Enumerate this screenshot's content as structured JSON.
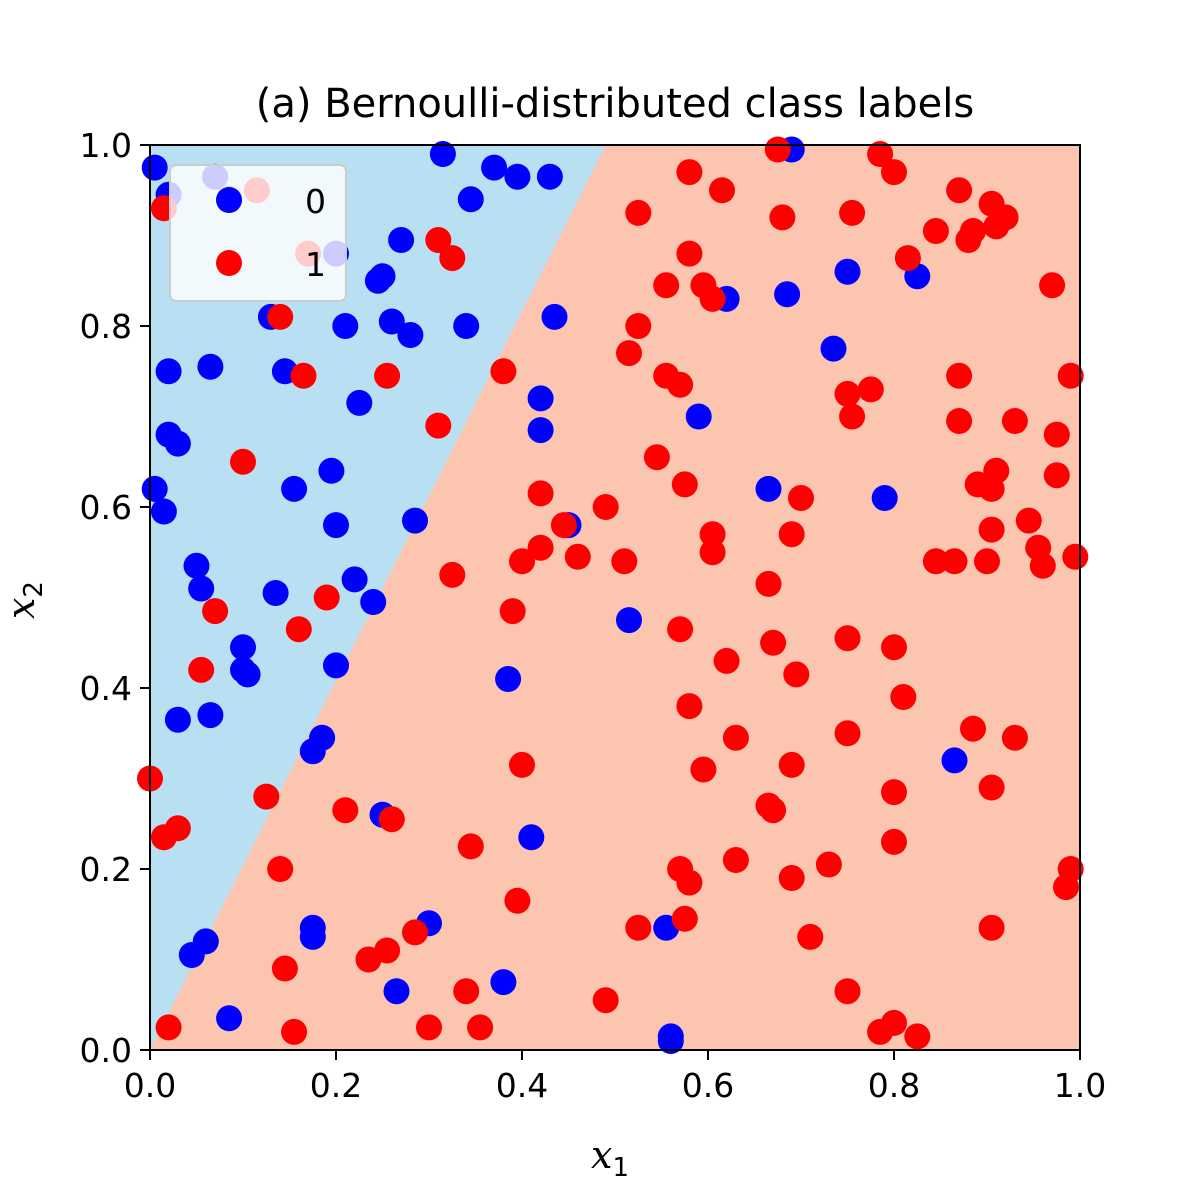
{
  "chart_data": {
    "type": "scatter",
    "title": "(a) Bernoulli-distributed class labels",
    "xlabel": "x",
    "xlabel_sub": "1",
    "ylabel": "x",
    "ylabel_sub": "2",
    "xlim": [
      0.0,
      1.0
    ],
    "ylim": [
      0.0,
      1.0
    ],
    "xticks": [
      "0.0",
      "0.2",
      "0.4",
      "0.6",
      "0.8",
      "1.0"
    ],
    "yticks": [
      "0.0",
      "0.2",
      "0.4",
      "0.6",
      "0.8",
      "1.0"
    ],
    "grid": false,
    "legend_position": "top-left",
    "decision_regions": {
      "boundary_points": [
        [
          0.0,
          0.0
        ],
        [
          0.49,
          1.0
        ]
      ],
      "region_0": {
        "label": "0",
        "color": "#b9e0f2",
        "side": "upper-left"
      },
      "region_1": {
        "label": "1",
        "color": "#fcc5b0",
        "side": "lower-right"
      }
    },
    "series": [
      {
        "name": "0",
        "color": "#0000ff",
        "points": [
          [
            0.005,
            0.975
          ],
          [
            0.02,
            0.945
          ],
          [
            0.07,
            0.965
          ],
          [
            0.085,
            0.94
          ],
          [
            0.315,
            0.99
          ],
          [
            0.37,
            0.975
          ],
          [
            0.395,
            0.965
          ],
          [
            0.43,
            0.965
          ],
          [
            0.345,
            0.94
          ],
          [
            0.69,
            0.995
          ],
          [
            0.2,
            0.88
          ],
          [
            0.27,
            0.895
          ],
          [
            0.25,
            0.855
          ],
          [
            0.245,
            0.85
          ],
          [
            0.13,
            0.81
          ],
          [
            0.26,
            0.805
          ],
          [
            0.21,
            0.8
          ],
          [
            0.28,
            0.79
          ],
          [
            0.34,
            0.8
          ],
          [
            0.435,
            0.81
          ],
          [
            0.62,
            0.83
          ],
          [
            0.685,
            0.835
          ],
          [
            0.75,
            0.86
          ],
          [
            0.825,
            0.855
          ],
          [
            0.735,
            0.775
          ],
          [
            0.02,
            0.75
          ],
          [
            0.065,
            0.755
          ],
          [
            0.145,
            0.75
          ],
          [
            0.225,
            0.715
          ],
          [
            0.42,
            0.72
          ],
          [
            0.42,
            0.685
          ],
          [
            0.59,
            0.7
          ],
          [
            0.02,
            0.68
          ],
          [
            0.03,
            0.67
          ],
          [
            0.005,
            0.62
          ],
          [
            0.015,
            0.595
          ],
          [
            0.155,
            0.62
          ],
          [
            0.195,
            0.64
          ],
          [
            0.2,
            0.58
          ],
          [
            0.285,
            0.585
          ],
          [
            0.45,
            0.58
          ],
          [
            0.665,
            0.62
          ],
          [
            0.79,
            0.61
          ],
          [
            0.05,
            0.535
          ],
          [
            0.055,
            0.51
          ],
          [
            0.135,
            0.505
          ],
          [
            0.22,
            0.52
          ],
          [
            0.24,
            0.495
          ],
          [
            0.515,
            0.475
          ],
          [
            0.1,
            0.445
          ],
          [
            0.1,
            0.42
          ],
          [
            0.105,
            0.415
          ],
          [
            0.2,
            0.425
          ],
          [
            0.03,
            0.365
          ],
          [
            0.065,
            0.37
          ],
          [
            0.385,
            0.41
          ],
          [
            0.185,
            0.345
          ],
          [
            0.175,
            0.33
          ],
          [
            0.25,
            0.26
          ],
          [
            0.41,
            0.235
          ],
          [
            0.865,
            0.32
          ],
          [
            0.045,
            0.105
          ],
          [
            0.06,
            0.12
          ],
          [
            0.175,
            0.135
          ],
          [
            0.175,
            0.125
          ],
          [
            0.3,
            0.14
          ],
          [
            0.555,
            0.135
          ],
          [
            0.085,
            0.035
          ],
          [
            0.265,
            0.065
          ],
          [
            0.38,
            0.075
          ],
          [
            0.56,
            0.015
          ],
          [
            0.56,
            0.01
          ]
        ]
      },
      {
        "name": "1",
        "color": "#ff0000",
        "points": [
          [
            0.015,
            0.93
          ],
          [
            0.115,
            0.95
          ],
          [
            0.675,
            0.995
          ],
          [
            0.785,
            0.99
          ],
          [
            0.58,
            0.97
          ],
          [
            0.8,
            0.97
          ],
          [
            0.615,
            0.95
          ],
          [
            0.87,
            0.95
          ],
          [
            0.525,
            0.925
          ],
          [
            0.68,
            0.92
          ],
          [
            0.755,
            0.925
          ],
          [
            0.845,
            0.905
          ],
          [
            0.88,
            0.895
          ],
          [
            0.885,
            0.905
          ],
          [
            0.905,
            0.935
          ],
          [
            0.91,
            0.91
          ],
          [
            0.92,
            0.92
          ],
          [
            0.31,
            0.895
          ],
          [
            0.325,
            0.875
          ],
          [
            0.17,
            0.88
          ],
          [
            0.58,
            0.88
          ],
          [
            0.595,
            0.845
          ],
          [
            0.605,
            0.83
          ],
          [
            0.555,
            0.845
          ],
          [
            0.815,
            0.875
          ],
          [
            0.97,
            0.845
          ],
          [
            0.525,
            0.8
          ],
          [
            0.515,
            0.77
          ],
          [
            0.14,
            0.81
          ],
          [
            0.165,
            0.745
          ],
          [
            0.255,
            0.745
          ],
          [
            0.38,
            0.75
          ],
          [
            0.555,
            0.745
          ],
          [
            0.57,
            0.735
          ],
          [
            0.75,
            0.725
          ],
          [
            0.775,
            0.73
          ],
          [
            0.87,
            0.745
          ],
          [
            0.99,
            0.745
          ],
          [
            0.755,
            0.7
          ],
          [
            0.87,
            0.695
          ],
          [
            0.93,
            0.695
          ],
          [
            0.975,
            0.68
          ],
          [
            0.31,
            0.69
          ],
          [
            0.1,
            0.65
          ],
          [
            0.545,
            0.655
          ],
          [
            0.42,
            0.615
          ],
          [
            0.575,
            0.625
          ],
          [
            0.7,
            0.61
          ],
          [
            0.89,
            0.625
          ],
          [
            0.905,
            0.62
          ],
          [
            0.91,
            0.64
          ],
          [
            0.975,
            0.635
          ],
          [
            0.49,
            0.6
          ],
          [
            0.445,
            0.58
          ],
          [
            0.42,
            0.555
          ],
          [
            0.4,
            0.54
          ],
          [
            0.46,
            0.545
          ],
          [
            0.51,
            0.54
          ],
          [
            0.605,
            0.57
          ],
          [
            0.605,
            0.55
          ],
          [
            0.69,
            0.57
          ],
          [
            0.945,
            0.585
          ],
          [
            0.955,
            0.555
          ],
          [
            0.905,
            0.575
          ],
          [
            0.9,
            0.54
          ],
          [
            0.845,
            0.54
          ],
          [
            0.865,
            0.54
          ],
          [
            0.96,
            0.535
          ],
          [
            0.995,
            0.545
          ],
          [
            0.665,
            0.515
          ],
          [
            0.325,
            0.525
          ],
          [
            0.19,
            0.5
          ],
          [
            0.07,
            0.485
          ],
          [
            0.39,
            0.485
          ],
          [
            0.16,
            0.465
          ],
          [
            0.57,
            0.465
          ],
          [
            0.67,
            0.45
          ],
          [
            0.75,
            0.455
          ],
          [
            0.8,
            0.445
          ],
          [
            0.055,
            0.42
          ],
          [
            0.62,
            0.43
          ],
          [
            0.695,
            0.415
          ],
          [
            0.81,
            0.39
          ],
          [
            0.58,
            0.38
          ],
          [
            0.885,
            0.355
          ],
          [
            0.93,
            0.345
          ],
          [
            0.63,
            0.345
          ],
          [
            0.75,
            0.35
          ],
          [
            0.0,
            0.3
          ],
          [
            0.4,
            0.315
          ],
          [
            0.595,
            0.31
          ],
          [
            0.69,
            0.315
          ],
          [
            0.8,
            0.285
          ],
          [
            0.905,
            0.29
          ],
          [
            0.125,
            0.28
          ],
          [
            0.21,
            0.265
          ],
          [
            0.26,
            0.255
          ],
          [
            0.665,
            0.27
          ],
          [
            0.67,
            0.265
          ],
          [
            0.015,
            0.235
          ],
          [
            0.03,
            0.245
          ],
          [
            0.345,
            0.225
          ],
          [
            0.8,
            0.23
          ],
          [
            0.14,
            0.2
          ],
          [
            0.57,
            0.2
          ],
          [
            0.58,
            0.185
          ],
          [
            0.63,
            0.21
          ],
          [
            0.69,
            0.19
          ],
          [
            0.73,
            0.205
          ],
          [
            0.99,
            0.2
          ],
          [
            0.985,
            0.18
          ],
          [
            0.395,
            0.165
          ],
          [
            0.575,
            0.145
          ],
          [
            0.525,
            0.135
          ],
          [
            0.285,
            0.13
          ],
          [
            0.255,
            0.11
          ],
          [
            0.235,
            0.1
          ],
          [
            0.145,
            0.09
          ],
          [
            0.71,
            0.125
          ],
          [
            0.905,
            0.135
          ],
          [
            0.34,
            0.065
          ],
          [
            0.49,
            0.055
          ],
          [
            0.75,
            0.065
          ],
          [
            0.02,
            0.025
          ],
          [
            0.155,
            0.02
          ],
          [
            0.3,
            0.025
          ],
          [
            0.355,
            0.025
          ],
          [
            0.785,
            0.02
          ],
          [
            0.8,
            0.03
          ],
          [
            0.825,
            0.015
          ]
        ]
      }
    ]
  }
}
